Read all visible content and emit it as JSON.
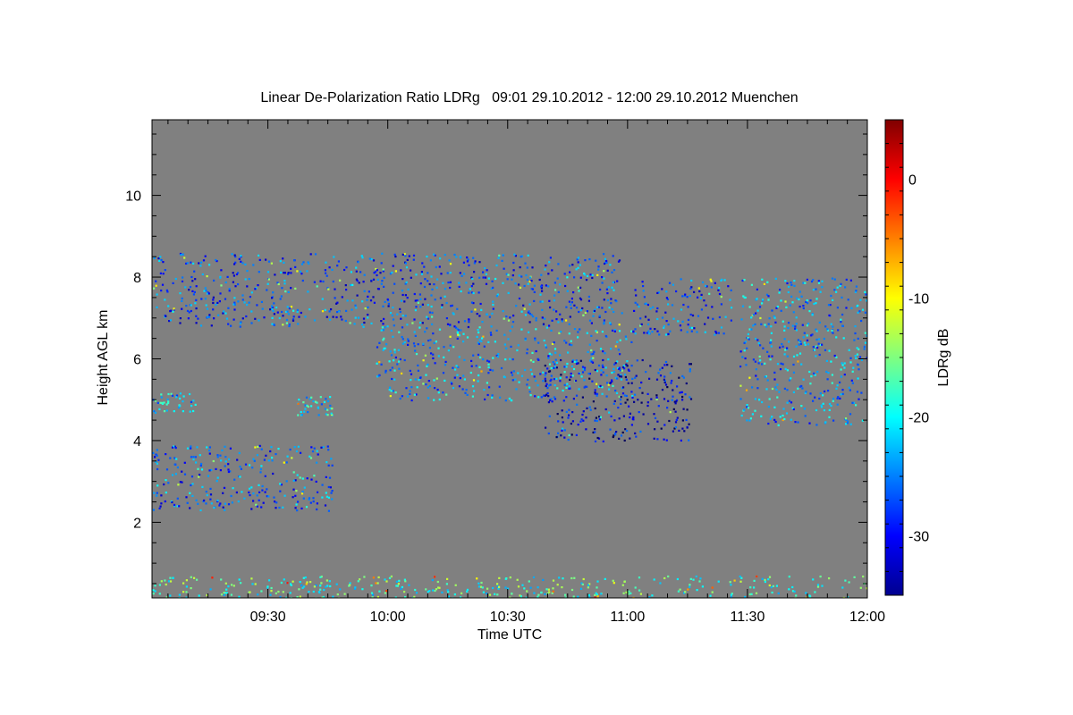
{
  "chart_data": {
    "type": "heatmap",
    "title": "Linear De-Polarization Ratio LDRg   09:01 29.10.2012 - 12:00 29.10.2012 Muenchen",
    "xlabel": "Time UTC",
    "ylabel": "Height AGL km",
    "x_range": [
      "09:01",
      "12:00"
    ],
    "x_ticks": [
      "09:30",
      "10:00",
      "10:30",
      "11:00",
      "11:30",
      "12:00"
    ],
    "x_tick_minutes": [
      29,
      59,
      89,
      119,
      149,
      179
    ],
    "xlim_minutes": [
      0,
      179
    ],
    "ylim": [
      0.15,
      11.85
    ],
    "y_ticks": [
      2,
      4,
      6,
      8,
      10
    ],
    "colorbar": {
      "label": "LDRg dB",
      "range": [
        -35,
        5
      ],
      "ticks": [
        0,
        -10,
        -20,
        -30
      ],
      "colormap": "jet"
    },
    "background_color": "#808080",
    "features": [
      {
        "t0": 0,
        "t1": 118,
        "h0": 6.8,
        "h1": 8.6,
        "ldr": -27
      },
      {
        "t0": 56,
        "t1": 120,
        "h0": 5.0,
        "h1": 6.8,
        "ldr": -24
      },
      {
        "t0": 98,
        "t1": 135,
        "h0": 4.0,
        "h1": 6.0,
        "ldr": -31
      },
      {
        "t0": 120,
        "t1": 145,
        "h0": 6.6,
        "h1": 8.0,
        "ldr": -27
      },
      {
        "t0": 147,
        "t1": 179,
        "h0": 4.4,
        "h1": 8.0,
        "ldr": -24
      },
      {
        "t0": 0,
        "t1": 45,
        "h0": 2.3,
        "h1": 3.9,
        "ldr": -26
      },
      {
        "t0": 0,
        "t1": 11,
        "h0": 4.7,
        "h1": 5.2,
        "ldr": -22
      },
      {
        "t0": 36,
        "t1": 45,
        "h0": 4.6,
        "h1": 5.1,
        "ldr": -22
      },
      {
        "t0": 0,
        "t1": 179,
        "h0": 0.15,
        "h1": 0.7,
        "ldr": -18
      }
    ]
  }
}
